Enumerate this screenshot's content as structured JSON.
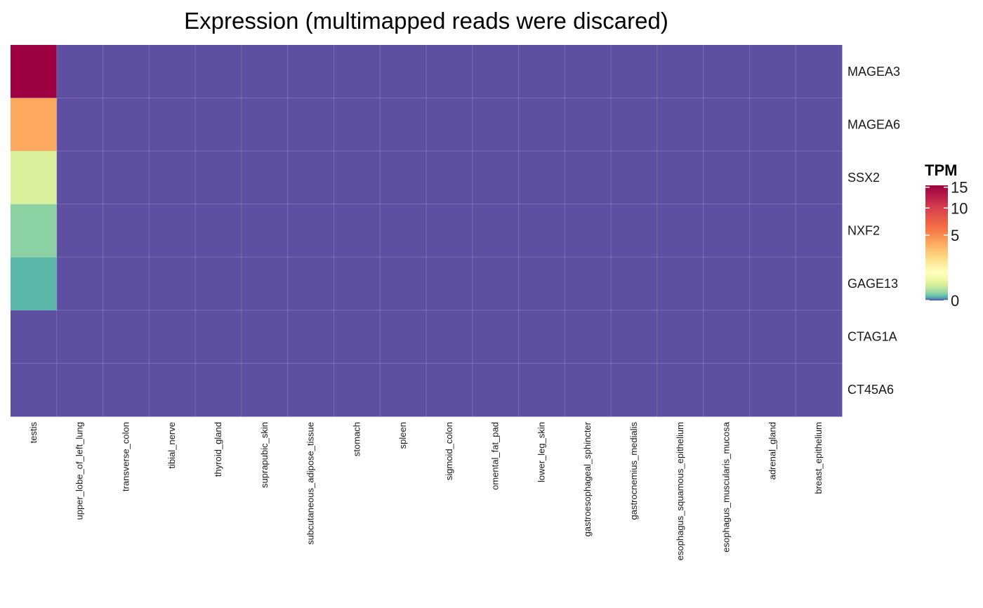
{
  "chart_data": {
    "type": "heatmap",
    "title": "Expression (multimapped reads were discared)",
    "x_categories": [
      "testis",
      "upper_lobe_of_left_lung",
      "transverse_colon",
      "tibial_nerve",
      "thyroid_gland",
      "suprapubic_skin",
      "subcutaneous_adipose_tissue",
      "stomach",
      "spleen",
      "sigmoid_colon",
      "omental_fat_pad",
      "lower_leg_skin",
      "gastroesophageal_sphincter",
      "gastrocnemius_medialis",
      "esophagus_squamous_epithelium",
      "esophagus_muscularis_mucosa",
      "adrenal_gland",
      "breast_epithelium"
    ],
    "y_categories": [
      "MAGEA3",
      "MAGEA6",
      "SSX2",
      "NXF2",
      "GAGE13",
      "CTAG1A",
      "CT45A6"
    ],
    "values": [
      [
        15.5,
        0,
        0,
        0,
        0,
        0,
        0,
        0,
        0,
        0,
        0,
        0,
        0,
        0,
        0,
        0,
        0,
        0
      ],
      [
        7.8,
        0,
        0,
        0,
        0,
        0,
        0,
        0,
        0,
        0,
        0,
        0,
        0,
        0,
        0,
        0,
        0,
        0
      ],
      [
        2.2,
        0,
        0,
        0,
        0,
        0,
        0,
        0,
        0,
        0,
        0,
        0,
        0,
        0,
        0,
        0,
        0,
        0
      ],
      [
        1.0,
        0,
        0,
        0,
        0,
        0,
        0,
        0,
        0,
        0,
        0,
        0,
        0,
        0,
        0,
        0,
        0,
        0
      ],
      [
        0.5,
        0,
        0,
        0,
        0,
        0,
        0,
        0,
        0,
        0,
        0,
        0,
        0,
        0,
        0,
        0,
        0,
        0
      ],
      [
        0,
        0,
        0,
        0,
        0,
        0,
        0,
        0,
        0,
        0,
        0,
        0,
        0,
        0,
        0,
        0,
        0,
        0
      ],
      [
        0,
        0,
        0,
        0,
        0,
        0,
        0,
        0,
        0,
        0,
        0,
        0,
        0,
        0,
        0,
        0,
        0,
        0
      ]
    ],
    "legend": {
      "title": "TPM",
      "ticks": [
        0,
        5,
        10,
        15
      ],
      "range": [
        0,
        15.5
      ],
      "scale": "sqrt",
      "palette": [
        "#5E4FA2",
        "#3288BD",
        "#66C2A5",
        "#ABDDA4",
        "#E6F598",
        "#FFFFBF",
        "#FEE08B",
        "#FDAE61",
        "#F46D43",
        "#D53E4F",
        "#9E0142"
      ],
      "position": "right"
    }
  }
}
